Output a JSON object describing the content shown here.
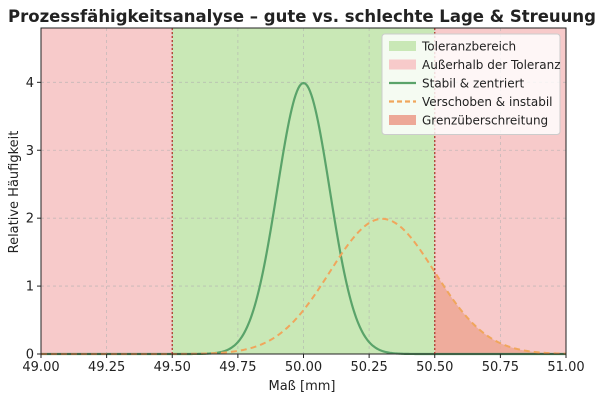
{
  "chart_data": {
    "type": "line",
    "title": "Prozessfähigkeitsanalyse – gute vs. schlechte Lage & Streuung",
    "xlabel": "Maß [mm]",
    "ylabel": "Relative Häufigkeit",
    "xlim": [
      49.0,
      51.0
    ],
    "ylim": [
      0,
      4.8
    ],
    "xticks": [
      "49.00",
      "49.25",
      "49.50",
      "49.75",
      "50.00",
      "50.25",
      "50.50",
      "50.75",
      "51.00"
    ],
    "yticks": [
      "0",
      "1",
      "2",
      "3",
      "4"
    ],
    "grid": true,
    "legend_position": "top-right",
    "tolerance": {
      "lower": 49.5,
      "upper": 50.5
    },
    "legend": [
      {
        "label": "Toleranzbereich",
        "kind": "patch",
        "color": "#c9e8b6"
      },
      {
        "label": "Außerhalb der Toleranz",
        "kind": "patch",
        "color": "#f7caca"
      },
      {
        "label": "Stabil & zentriert",
        "kind": "line",
        "color": "#5aa36a"
      },
      {
        "label": "Verschoben & instabil",
        "kind": "dashed",
        "color": "#f0a65c"
      },
      {
        "label": "Grenzüberschreitung",
        "kind": "patch",
        "color": "#eda897"
      }
    ],
    "series": [
      {
        "name": "Stabil & zentriert",
        "distribution": "normal",
        "mean": 50.0,
        "std": 0.1,
        "peak": 3.99,
        "color": "#5aa36a",
        "style": "solid"
      },
      {
        "name": "Verschoben & instabil",
        "distribution": "normal",
        "mean": 50.3,
        "std": 0.2,
        "peak": 1.99,
        "color": "#f0a65c",
        "style": "dashed"
      }
    ],
    "exceedance_region": {
      "x_from": 50.5,
      "x_to": 51.0,
      "series": "Verschoben & instabil",
      "color": "#eda897"
    }
  }
}
